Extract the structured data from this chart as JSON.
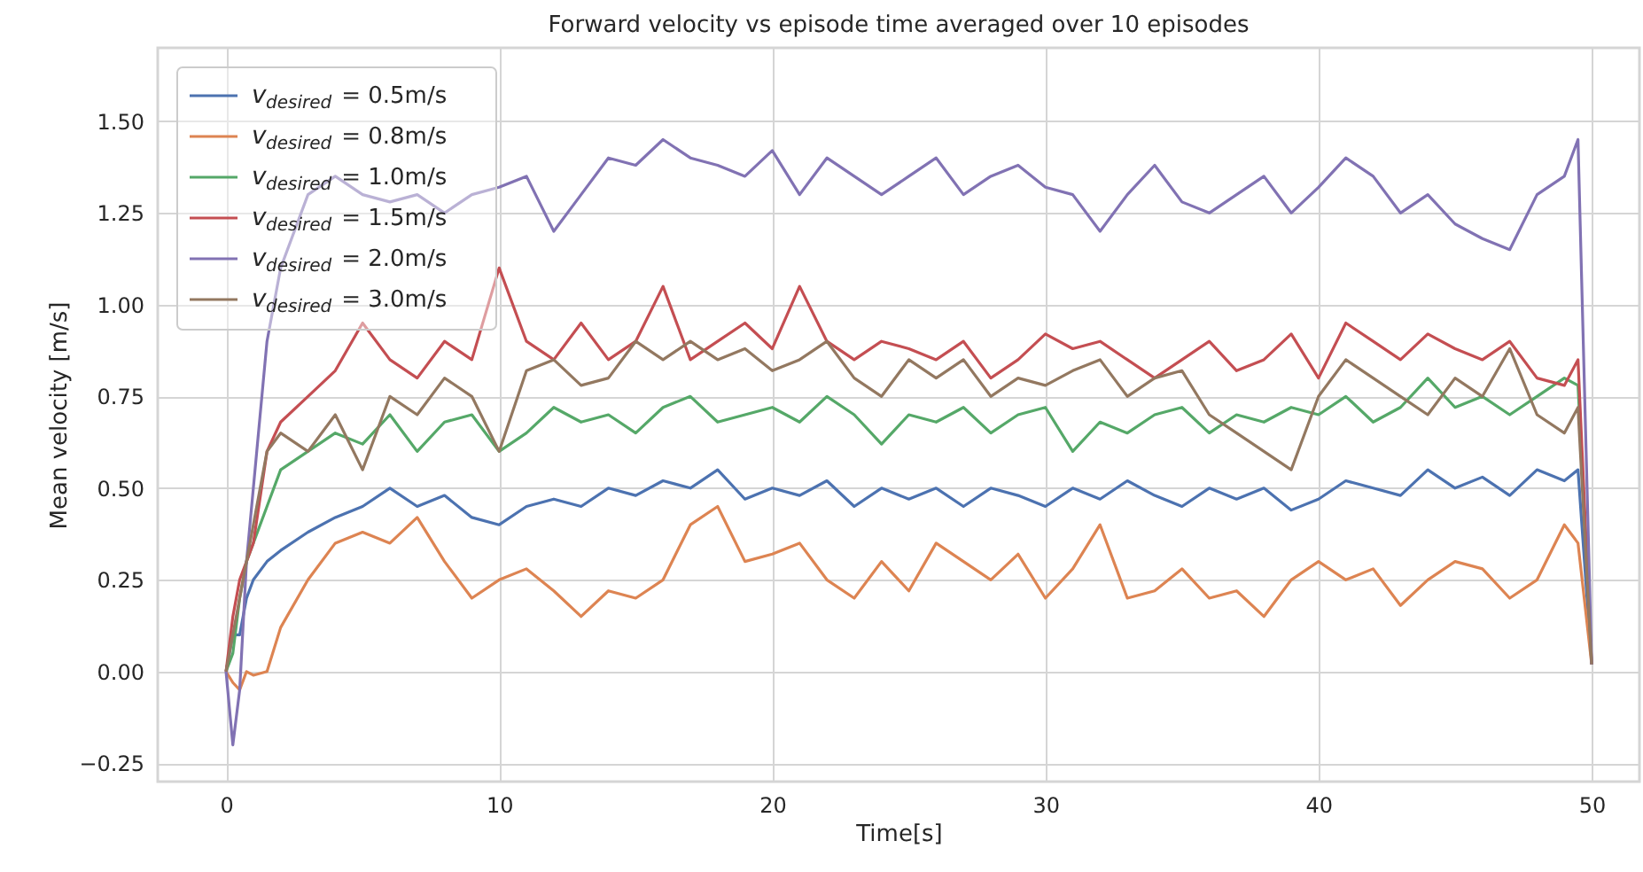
{
  "chart_data": {
    "type": "line",
    "title": "Forward velocity vs episode time averaged over 10 episodes",
    "xlabel": "Time[s]",
    "ylabel": "Mean velocity [m/s]",
    "x": [
      0,
      0.25,
      0.5,
      0.75,
      1,
      1.5,
      2,
      3,
      4,
      5,
      6,
      7,
      8,
      9,
      10,
      11,
      12,
      13,
      14,
      15,
      16,
      17,
      18,
      19,
      20,
      21,
      22,
      23,
      24,
      25,
      26,
      27,
      28,
      29,
      30,
      31,
      32,
      33,
      34,
      35,
      36,
      37,
      38,
      39,
      40,
      41,
      42,
      43,
      44,
      45,
      46,
      47,
      48,
      49,
      49.5,
      50
    ],
    "series": [
      {
        "name": "v$_{desired}$ = 0.5m/s",
        "color": "#4c72b0",
        "values": [
          0,
          0.1,
          0.1,
          0.2,
          0.25,
          0.3,
          0.33,
          0.38,
          0.42,
          0.45,
          0.5,
          0.45,
          0.48,
          0.42,
          0.4,
          0.45,
          0.47,
          0.45,
          0.5,
          0.48,
          0.52,
          0.5,
          0.55,
          0.47,
          0.5,
          0.48,
          0.52,
          0.45,
          0.5,
          0.47,
          0.5,
          0.45,
          0.5,
          0.48,
          0.45,
          0.5,
          0.47,
          0.52,
          0.48,
          0.45,
          0.5,
          0.47,
          0.5,
          0.44,
          0.47,
          0.52,
          0.5,
          0.48,
          0.55,
          0.5,
          0.53,
          0.48,
          0.55,
          0.52,
          0.55,
          0.02
        ]
      },
      {
        "name": "v$_{desired}$ = 0.8m/s",
        "color": "#dd8452",
        "values": [
          0,
          -0.03,
          -0.05,
          0,
          -0.01,
          0,
          0.12,
          0.25,
          0.35,
          0.38,
          0.35,
          0.42,
          0.3,
          0.2,
          0.25,
          0.28,
          0.22,
          0.15,
          0.22,
          0.2,
          0.25,
          0.4,
          0.45,
          0.3,
          0.32,
          0.35,
          0.25,
          0.2,
          0.3,
          0.22,
          0.35,
          0.3,
          0.25,
          0.32,
          0.2,
          0.28,
          0.4,
          0.2,
          0.22,
          0.28,
          0.2,
          0.22,
          0.15,
          0.25,
          0.3,
          0.25,
          0.28,
          0.18,
          0.25,
          0.3,
          0.28,
          0.2,
          0.25,
          0.4,
          0.35,
          0.02
        ]
      },
      {
        "name": "v$_{desired}$ = 1.0m/s",
        "color": "#55a868",
        "values": [
          0,
          0.05,
          0.2,
          0.3,
          0.35,
          0.45,
          0.55,
          0.6,
          0.65,
          0.62,
          0.7,
          0.6,
          0.68,
          0.7,
          0.6,
          0.65,
          0.72,
          0.68,
          0.7,
          0.65,
          0.72,
          0.75,
          0.68,
          0.7,
          0.72,
          0.68,
          0.75,
          0.7,
          0.62,
          0.7,
          0.68,
          0.72,
          0.65,
          0.7,
          0.72,
          0.6,
          0.68,
          0.65,
          0.7,
          0.72,
          0.65,
          0.7,
          0.68,
          0.72,
          0.7,
          0.75,
          0.68,
          0.72,
          0.8,
          0.72,
          0.75,
          0.7,
          0.75,
          0.8,
          0.78,
          0.02
        ]
      },
      {
        "name": "v$_{desired}$ = 1.5m/s",
        "color": "#c44e52",
        "values": [
          0,
          0.15,
          0.25,
          0.3,
          0.35,
          0.6,
          0.68,
          0.75,
          0.82,
          0.95,
          0.85,
          0.8,
          0.9,
          0.85,
          1.1,
          0.9,
          0.85,
          0.95,
          0.85,
          0.9,
          1.05,
          0.85,
          0.9,
          0.95,
          0.88,
          1.05,
          0.9,
          0.85,
          0.9,
          0.88,
          0.85,
          0.9,
          0.8,
          0.85,
          0.92,
          0.88,
          0.9,
          0.85,
          0.8,
          0.85,
          0.9,
          0.82,
          0.85,
          0.92,
          0.8,
          0.95,
          0.9,
          0.85,
          0.92,
          0.88,
          0.85,
          0.9,
          0.8,
          0.78,
          0.85,
          0.02
        ]
      },
      {
        "name": "v$_{desired}$ = 2.0m/s",
        "color": "#8172b3",
        "values": [
          0,
          -0.2,
          -0.05,
          0.3,
          0.5,
          0.9,
          1.1,
          1.3,
          1.35,
          1.3,
          1.28,
          1.3,
          1.25,
          1.3,
          1.32,
          1.35,
          1.2,
          1.3,
          1.4,
          1.38,
          1.45,
          1.4,
          1.38,
          1.35,
          1.42,
          1.3,
          1.4,
          1.35,
          1.3,
          1.35,
          1.4,
          1.3,
          1.35,
          1.38,
          1.32,
          1.3,
          1.2,
          1.3,
          1.38,
          1.28,
          1.25,
          1.3,
          1.35,
          1.25,
          1.32,
          1.4,
          1.35,
          1.25,
          1.3,
          1.22,
          1.18,
          1.15,
          1.3,
          1.35,
          1.45,
          0.02
        ]
      },
      {
        "name": "v$_{desired}$ = 3.0m/s",
        "color": "#937860",
        "values": [
          0,
          0.1,
          0.2,
          0.3,
          0.4,
          0.6,
          0.65,
          0.6,
          0.7,
          0.55,
          0.75,
          0.7,
          0.8,
          0.75,
          0.6,
          0.82,
          0.85,
          0.78,
          0.8,
          0.9,
          0.85,
          0.9,
          0.85,
          0.88,
          0.82,
          0.85,
          0.9,
          0.8,
          0.75,
          0.85,
          0.8,
          0.85,
          0.75,
          0.8,
          0.78,
          0.82,
          0.85,
          0.75,
          0.8,
          0.82,
          0.7,
          0.65,
          0.6,
          0.55,
          0.75,
          0.85,
          0.8,
          0.75,
          0.7,
          0.8,
          0.75,
          0.88,
          0.7,
          0.65,
          0.72,
          0.02
        ]
      }
    ],
    "xlim": [
      -2.5,
      51.75
    ],
    "ylim": [
      -0.3,
      1.7
    ],
    "xticks": [
      0,
      10,
      20,
      30,
      40,
      50
    ],
    "yticks": [
      {
        "value": -0.25,
        "label": "−0.25"
      },
      {
        "value": 0,
        "label": "0.00"
      },
      {
        "value": 0.25,
        "label": "0.25"
      },
      {
        "value": 0.5,
        "label": "0.50"
      },
      {
        "value": 0.75,
        "label": "0.75"
      },
      {
        "value": 1.0,
        "label": "1.00"
      },
      {
        "value": 1.25,
        "label": "1.25"
      },
      {
        "value": 1.5,
        "label": "1.50"
      }
    ],
    "grid": true,
    "legend": "top left",
    "line_style": "solid",
    "marker": "none"
  }
}
